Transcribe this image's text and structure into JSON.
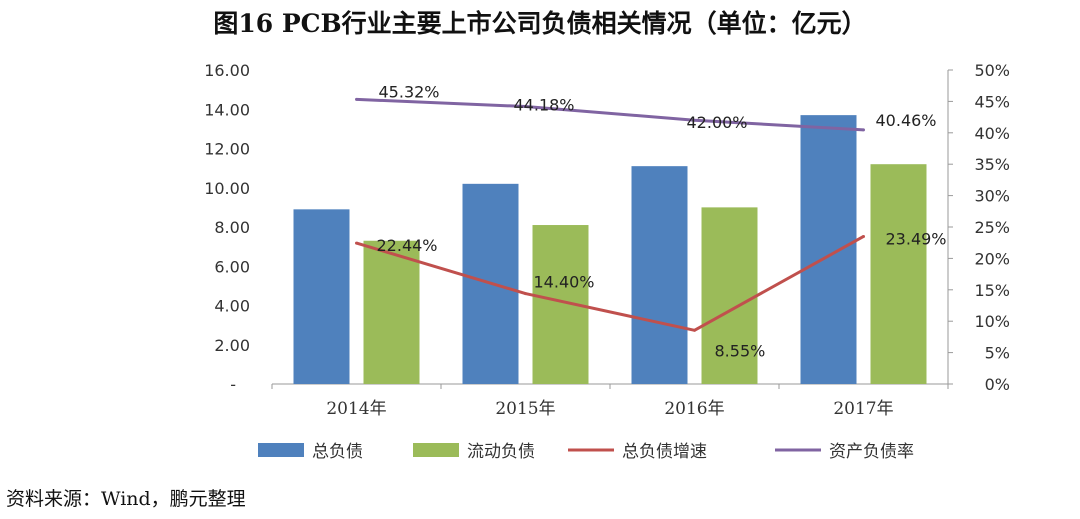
{
  "title": "图16    PCB行业主要上市公司负债相关情况（单位：亿元）",
  "source": "资料来源：Wind，鹏元整理",
  "chart_data": {
    "type": "bar",
    "categories": [
      "2014年",
      "2015年",
      "2016年",
      "2017年"
    ],
    "series": [
      {
        "name": "总负债",
        "kind": "bar",
        "axis": "left",
        "color": "#4F81BD",
        "values": [
          8.9,
          10.2,
          11.1,
          13.7
        ]
      },
      {
        "name": "流动负债",
        "kind": "bar",
        "axis": "left",
        "color": "#9BBB59",
        "values": [
          7.3,
          8.1,
          9.0,
          11.2
        ]
      },
      {
        "name": "总负债增速",
        "kind": "line",
        "axis": "right",
        "color": "#C0504D",
        "values": [
          22.44,
          14.4,
          8.55,
          23.49
        ],
        "labels": [
          "22.44%",
          "14.40%",
          "8.55%",
          "23.49%"
        ]
      },
      {
        "name": "资产负债率",
        "kind": "line",
        "axis": "right",
        "color": "#8064A2",
        "values": [
          45.32,
          44.18,
          42.0,
          40.46
        ],
        "labels": [
          "45.32%",
          "44.18%",
          "42.00%",
          "40.46%"
        ]
      }
    ],
    "y_left": {
      "min": 0,
      "max": 16,
      "ticks": [
        "-",
        "2.00",
        "4.00",
        "6.00",
        "8.00",
        "10.00",
        "12.00",
        "14.00",
        "16.00"
      ]
    },
    "y_right": {
      "min": 0,
      "max": 50,
      "ticks": [
        "0%",
        "5%",
        "10%",
        "15%",
        "20%",
        "25%",
        "30%",
        "35%",
        "40%",
        "45%",
        "50%"
      ]
    },
    "legend_position": "bottom",
    "grid": false
  }
}
